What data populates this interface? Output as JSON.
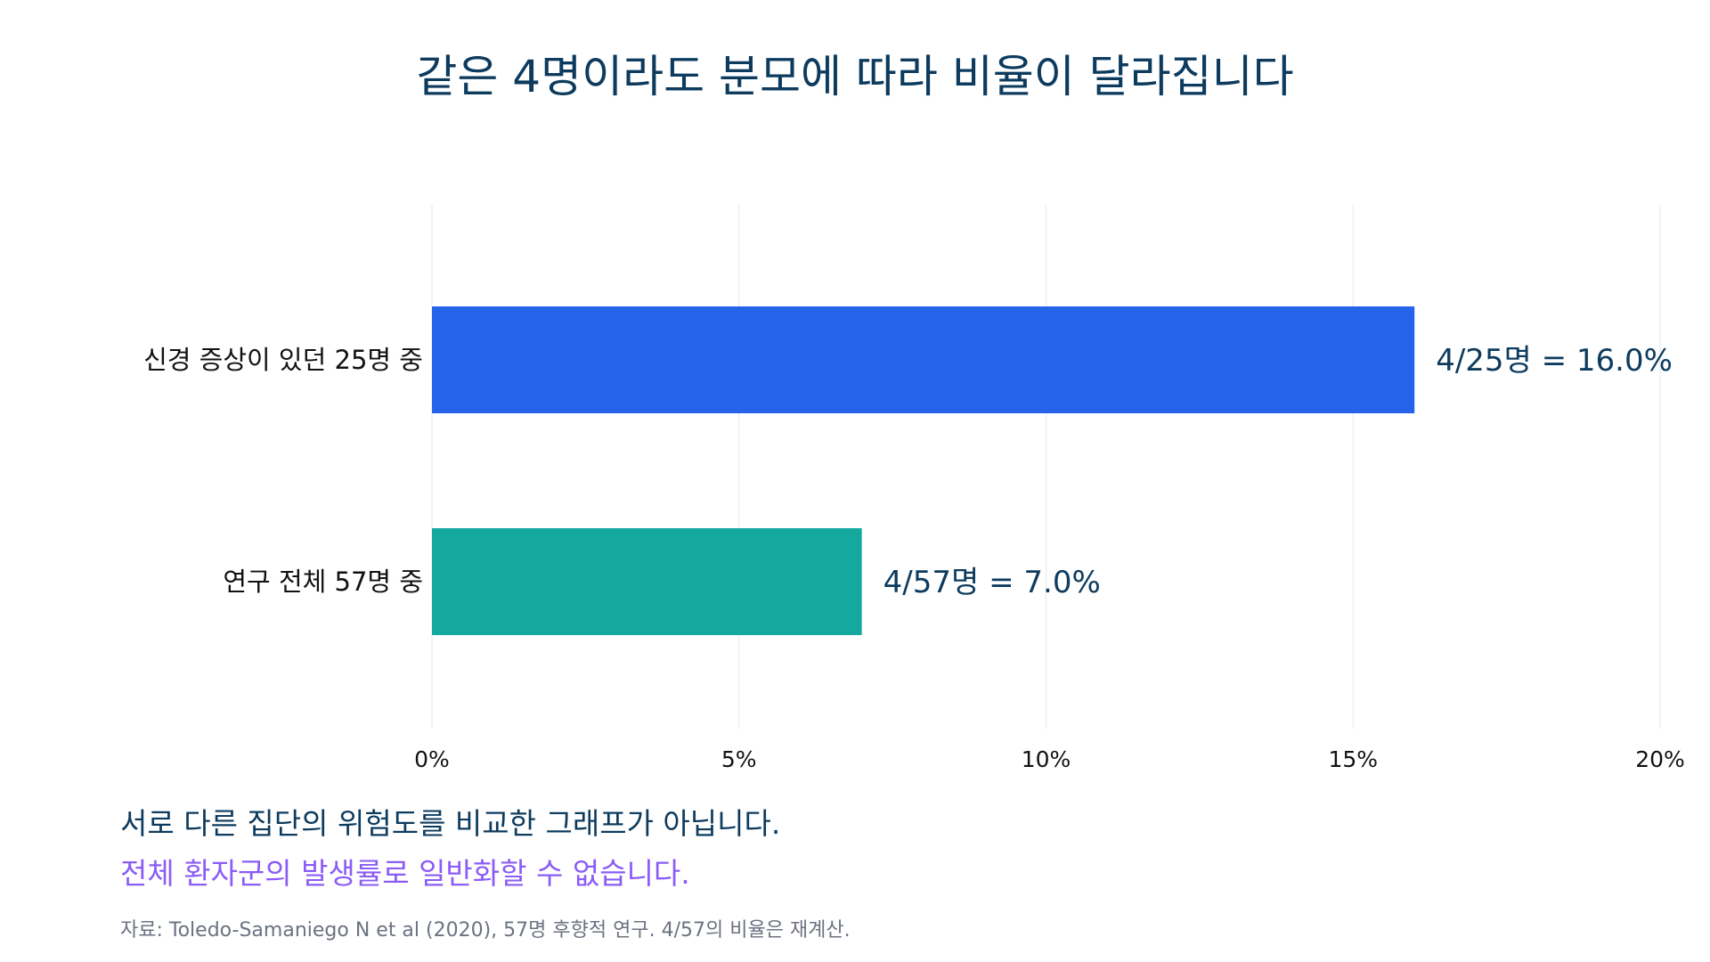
{
  "chart_data": {
    "type": "bar",
    "orientation": "horizontal",
    "title": "같은 4명이라도 분모에 따라 비율이 달라집니다",
    "categories": [
      "신경 증상이 있던 25명 중",
      "연구 전체 57명 중"
    ],
    "values": [
      16.0,
      7.0
    ],
    "value_labels": [
      "4/25명 = 16.0%",
      "4/57명 = 7.0%"
    ],
    "bar_colors": [
      "#2563eb",
      "#14a89e"
    ],
    "xlim": [
      0,
      20
    ],
    "xticks": [
      0,
      5,
      10,
      15,
      20
    ],
    "xtick_labels": [
      "0%",
      "5%",
      "10%",
      "15%",
      "20%"
    ],
    "grid": "vertical",
    "xlabel": "",
    "ylabel": ""
  },
  "notes": {
    "line1": "서로 다른 집단의 위험도를 비교한 그래프가 아닙니다.",
    "line2": "전체 환자군의 발생률로 일반화할 수 없습니다.",
    "source": "자료: Toledo-Samaniego N et al (2020), 57명 후향적 연구. 4/57의 비율은 재계산."
  },
  "colors": {
    "title": "#0d3b5e",
    "value_label": "#0d3b5e",
    "highlight_note": "#8b5cf6",
    "source": "#6b7280",
    "grid": "#e5e7eb"
  }
}
